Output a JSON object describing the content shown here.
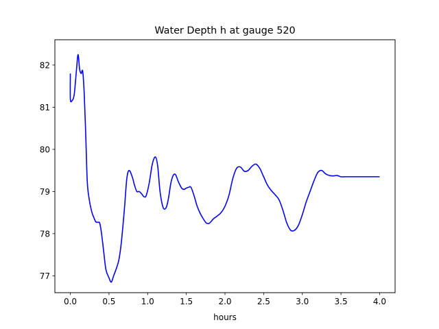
{
  "chart_data": {
    "type": "line",
    "title": "Water Depth h at gauge 520",
    "xlabel": "hours",
    "ylabel": "",
    "xlim": [
      -0.2,
      4.2
    ],
    "ylim": [
      76.6,
      82.6
    ],
    "xticks": [
      0.0,
      0.5,
      1.0,
      1.5,
      2.0,
      2.5,
      3.0,
      3.5,
      4.0
    ],
    "xtick_labels": [
      "0.0",
      "0.5",
      "1.0",
      "1.5",
      "2.0",
      "2.5",
      "3.0",
      "3.5",
      "4.0"
    ],
    "yticks": [
      77,
      78,
      79,
      80,
      81,
      82
    ],
    "ytick_labels": [
      "77",
      "78",
      "79",
      "80",
      "81",
      "82"
    ],
    "grid": false,
    "series": [
      {
        "color": "#0000ff",
        "x": [
          0.0,
          0.0,
          0.02,
          0.05,
          0.08,
          0.1,
          0.12,
          0.14,
          0.16,
          0.18,
          0.2,
          0.22,
          0.25,
          0.28,
          0.3,
          0.33,
          0.36,
          0.38,
          0.4,
          0.43,
          0.46,
          0.5,
          0.53,
          0.56,
          0.6,
          0.63,
          0.66,
          0.7,
          0.73,
          0.76,
          0.8,
          0.83,
          0.86,
          0.89,
          0.92,
          0.95,
          0.98,
          1.02,
          1.06,
          1.1,
          1.13,
          1.16,
          1.2,
          1.24,
          1.27,
          1.3,
          1.33,
          1.36,
          1.4,
          1.44,
          1.47,
          1.5,
          1.53,
          1.56,
          1.6,
          1.64,
          1.68,
          1.72,
          1.76,
          1.8,
          1.85,
          1.9,
          1.95,
          2.0,
          2.05,
          2.1,
          2.15,
          2.2,
          2.25,
          2.3,
          2.35,
          2.4,
          2.45,
          2.5,
          2.55,
          2.6,
          2.65,
          2.7,
          2.75,
          2.8,
          2.85,
          2.9,
          2.95,
          3.0,
          3.05,
          3.1,
          3.15,
          3.2,
          3.25,
          3.3,
          3.35,
          3.4,
          3.45,
          3.5,
          3.55,
          3.6,
          3.65,
          3.7,
          3.75,
          3.8,
          3.85,
          3.9,
          3.95,
          4.0
        ],
        "y": [
          81.8,
          81.2,
          81.15,
          81.3,
          81.9,
          82.25,
          81.9,
          81.8,
          81.85,
          81.3,
          80.3,
          79.2,
          78.75,
          78.5,
          78.4,
          78.28,
          78.27,
          78.25,
          78.05,
          77.6,
          77.15,
          76.95,
          76.85,
          77.0,
          77.2,
          77.4,
          77.8,
          78.6,
          79.3,
          79.5,
          79.35,
          79.15,
          79.0,
          79.0,
          78.95,
          78.88,
          78.9,
          79.2,
          79.65,
          79.82,
          79.6,
          79.0,
          78.62,
          78.62,
          78.85,
          79.2,
          79.38,
          79.4,
          79.22,
          79.08,
          79.05,
          79.08,
          79.1,
          79.1,
          78.9,
          78.65,
          78.48,
          78.35,
          78.25,
          78.25,
          78.35,
          78.42,
          78.5,
          78.65,
          78.9,
          79.3,
          79.55,
          79.58,
          79.48,
          79.5,
          79.6,
          79.65,
          79.55,
          79.35,
          79.15,
          79.02,
          78.92,
          78.8,
          78.55,
          78.25,
          78.08,
          78.08,
          78.2,
          78.45,
          78.75,
          79.0,
          79.25,
          79.45,
          79.5,
          79.42,
          79.38,
          79.37,
          79.38,
          79.35,
          79.35,
          79.35,
          79.35,
          79.35,
          79.35,
          79.35,
          79.35,
          79.35,
          79.35,
          79.35
        ]
      }
    ]
  }
}
